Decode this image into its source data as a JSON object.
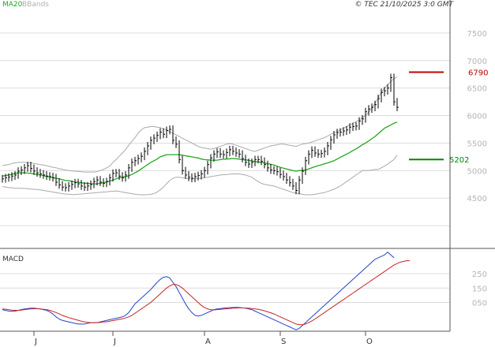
{
  "chart_data": [
    {
      "type": "line",
      "subtype": "ohlc-bars",
      "title": "",
      "legend": [
        "MA20",
        "BBands"
      ],
      "copyright": "© TEC 21/10/2025 3:0 GMT",
      "y_ticks": [
        4500,
        5000,
        5500,
        6000,
        6500,
        7000,
        7500
      ],
      "y_tick_labels": [
        "4500",
        "5000",
        "5500",
        "6000",
        "6500",
        "7000",
        "7500"
      ],
      "ylim": [
        3600,
        7900
      ],
      "grid": true,
      "levels": [
        {
          "value": 6790,
          "label": "6790",
          "color": "#c00000"
        },
        {
          "value": 5202,
          "label": "5202",
          "color": "#008800"
        }
      ],
      "colors": {
        "price": "#000000",
        "ma20": "#22a822",
        "bbands": "#aaaaaa",
        "grid": "#dcdcdc",
        "axis": "#555555"
      },
      "price_series": [
        {
          "name": "Price",
          "values": [
            4850,
            4870,
            4880,
            4900,
            4920,
            4990,
            5010,
            5050,
            5090,
            5040,
            4990,
            4960,
            4940,
            4920,
            4900,
            4890,
            4870,
            4790,
            4740,
            4700,
            4690,
            4720,
            4750,
            4780,
            4760,
            4720,
            4700,
            4720,
            4750,
            4800,
            4830,
            4790,
            4770,
            4800,
            4870,
            4950,
            4960,
            4900,
            4870,
            4920,
            5050,
            5150,
            5180,
            5220,
            5260,
            5350,
            5450,
            5550,
            5590,
            5640,
            5700,
            5660,
            5730,
            5750,
            5550,
            5480,
            5200,
            5000,
            4920,
            4880,
            4860,
            4890,
            4910,
            4940,
            5000,
            5110,
            5230,
            5300,
            5340,
            5300,
            5290,
            5330,
            5380,
            5350,
            5320,
            5300,
            5220,
            5150,
            5120,
            5150,
            5200,
            5200,
            5170,
            5110,
            5050,
            5010,
            5000,
            4980,
            4930,
            4890,
            4830,
            4780,
            4720,
            4640,
            4830,
            4990,
            5180,
            5300,
            5370,
            5320,
            5300,
            5310,
            5350,
            5450,
            5560,
            5650,
            5690,
            5700,
            5720,
            5740,
            5790,
            5800,
            5810,
            5900,
            5940,
            6070,
            6120,
            6150,
            6200,
            6310,
            6420,
            6450,
            6500,
            6690,
            6250,
            6150
          ]
        },
        {
          "name": "MA20",
          "values": [
            4900,
            4910,
            4920,
            4930,
            4950,
            4960,
            4960,
            4960,
            4955,
            4950,
            4940,
            4930,
            4920,
            4910,
            4895,
            4885,
            4870,
            4860,
            4850,
            4835,
            4820,
            4815,
            4805,
            4790,
            4790,
            4780,
            4770,
            4770,
            4760,
            4760,
            4760,
            4770,
            4780,
            4795,
            4810,
            4830,
            4850,
            4870,
            4880,
            4890,
            4905,
            4930,
            4960,
            4990,
            5030,
            5070,
            5110,
            5150,
            5180,
            5210,
            5250,
            5270,
            5290,
            5290,
            5290,
            5290,
            5290,
            5280,
            5270,
            5260,
            5250,
            5240,
            5230,
            5210,
            5200,
            5195,
            5190,
            5190,
            5190,
            5200,
            5205,
            5210,
            5215,
            5220,
            5215,
            5210,
            5200,
            5195,
            5185,
            5175,
            5165,
            5160,
            5150,
            5140,
            5125,
            5115,
            5100,
            5080,
            5060,
            5045,
            5030,
            5015,
            5000,
            4990,
            5000,
            5000,
            5010,
            5030,
            5050,
            5070,
            5090,
            5105,
            5125,
            5140,
            5160,
            5180,
            5210,
            5240,
            5270,
            5300,
            5330,
            5365,
            5395,
            5430,
            5470,
            5500,
            5540,
            5580,
            5620,
            5670,
            5720,
            5770,
            5800,
            5830,
            5860,
            5880
          ]
        },
        {
          "name": "BBands upper",
          "values": [
            5090,
            5100,
            5110,
            5130,
            5140,
            5150,
            5150,
            5150,
            5145,
            5140,
            5130,
            5120,
            5110,
            5100,
            5090,
            5075,
            5060,
            5050,
            5035,
            5025,
            5010,
            5000,
            4995,
            4990,
            4985,
            4980,
            4975,
            4975,
            4975,
            4975,
            4980,
            5000,
            5020,
            5050,
            5080,
            5150,
            5200,
            5260,
            5320,
            5380,
            5460,
            5530,
            5600,
            5680,
            5740,
            5780,
            5790,
            5800,
            5800,
            5790,
            5780,
            5760,
            5740,
            5710,
            5680,
            5650,
            5620,
            5590,
            5560,
            5530,
            5500,
            5470,
            5440,
            5420,
            5410,
            5400,
            5390,
            5400,
            5420,
            5440,
            5460,
            5480,
            5490,
            5480,
            5460,
            5440,
            5420,
            5400,
            5380,
            5360,
            5350,
            5370,
            5390,
            5410,
            5430,
            5450,
            5460,
            5470,
            5480,
            5480,
            5470,
            5460,
            5450,
            5440,
            5460,
            5480,
            5490,
            5500,
            5520,
            5540,
            5560,
            5580,
            5600,
            5630,
            5660,
            5690,
            5710,
            5740,
            5770,
            5800,
            5830,
            5860,
            5890,
            5920,
            5960,
            6000,
            6060,
            6140,
            6220,
            6320,
            6420,
            6500,
            6560,
            6620,
            6670,
            6700
          ]
        },
        {
          "name": "BBands lower",
          "values": [
            4710,
            4700,
            4690,
            4690,
            4680,
            4680,
            4680,
            4675,
            4670,
            4665,
            4660,
            4655,
            4650,
            4640,
            4630,
            4620,
            4610,
            4600,
            4590,
            4580,
            4575,
            4570,
            4565,
            4565,
            4570,
            4575,
            4580,
            4585,
            4590,
            4595,
            4600,
            4605,
            4610,
            4615,
            4620,
            4625,
            4630,
            4620,
            4610,
            4600,
            4590,
            4580,
            4570,
            4565,
            4560,
            4560,
            4565,
            4570,
            4580,
            4610,
            4650,
            4700,
            4760,
            4820,
            4860,
            4880,
            4880,
            4870,
            4860,
            4850,
            4850,
            4850,
            4855,
            4860,
            4870,
            4880,
            4890,
            4900,
            4910,
            4920,
            4925,
            4930,
            4935,
            4940,
            4940,
            4940,
            4930,
            4920,
            4900,
            4880,
            4840,
            4800,
            4770,
            4750,
            4740,
            4730,
            4720,
            4700,
            4680,
            4660,
            4640,
            4620,
            4600,
            4590,
            4580,
            4570,
            4560,
            4560,
            4560,
            4570,
            4580,
            4590,
            4600,
            4620,
            4640,
            4660,
            4690,
            4720,
            4760,
            4800,
            4840,
            4880,
            4920,
            4960,
            5000,
            5000,
            5000,
            5010,
            5020,
            5020,
            5050,
            5080,
            5120,
            5160,
            5200,
            5280
          ]
        }
      ]
    },
    {
      "type": "line",
      "title": "MACD",
      "ylim": [
        -150,
        420
      ],
      "y_ticks": [
        50,
        150,
        250
      ],
      "y_tick_labels": [
        "050",
        "150",
        "250"
      ],
      "x_ticks": [
        {
          "label": "J",
          "index": 10
        },
        {
          "label": "J",
          "index": 35
        },
        {
          "label": "A",
          "index": 64
        },
        {
          "label": "S",
          "index": 88
        },
        {
          "label": "O",
          "index": 115
        }
      ],
      "series": [
        {
          "name": "MACD",
          "color": "#2244cc",
          "values": [
            0,
            -5,
            -10,
            -12,
            -10,
            -5,
            0,
            5,
            8,
            10,
            10,
            8,
            5,
            0,
            -5,
            -15,
            -30,
            -50,
            -65,
            -75,
            -80,
            -85,
            -90,
            -95,
            -100,
            -100,
            -100,
            -95,
            -90,
            -90,
            -90,
            -85,
            -80,
            -75,
            -70,
            -65,
            -60,
            -55,
            -50,
            -40,
            -20,
            10,
            40,
            60,
            80,
            100,
            120,
            140,
            165,
            190,
            210,
            225,
            230,
            220,
            190,
            160,
            120,
            80,
            40,
            5,
            -20,
            -40,
            -45,
            -40,
            -30,
            -20,
            -10,
            0,
            5,
            8,
            10,
            12,
            14,
            15,
            16,
            15,
            12,
            10,
            5,
            0,
            -10,
            -20,
            -30,
            -40,
            -50,
            -60,
            -70,
            -80,
            -90,
            -100,
            -110,
            -120,
            -130,
            -140,
            -130,
            -110,
            -90,
            -70,
            -50,
            -30,
            -10,
            10,
            30,
            50,
            70,
            90,
            110,
            130,
            150,
            170,
            190,
            210,
            230,
            250,
            270,
            290,
            310,
            330,
            350,
            360,
            370,
            380,
            400,
            380,
            360
          ]
        },
        {
          "name": "Signal",
          "color": "#cc2222",
          "values": [
            5,
            3,
            0,
            -3,
            -5,
            -5,
            -3,
            0,
            3,
            5,
            6,
            6,
            5,
            3,
            0,
            -5,
            -12,
            -20,
            -30,
            -40,
            -48,
            -55,
            -62,
            -68,
            -74,
            -80,
            -85,
            -88,
            -90,
            -90,
            -90,
            -88,
            -86,
            -84,
            -80,
            -76,
            -72,
            -68,
            -64,
            -58,
            -50,
            -40,
            -25,
            -10,
            5,
            20,
            35,
            50,
            70,
            90,
            110,
            130,
            150,
            165,
            175,
            175,
            165,
            150,
            130,
            110,
            90,
            70,
            50,
            30,
            15,
            5,
            0,
            -2,
            0,
            2,
            4,
            6,
            8,
            10,
            11,
            12,
            12,
            11,
            10,
            8,
            5,
            2,
            -2,
            -8,
            -15,
            -22,
            -30,
            -40,
            -50,
            -60,
            -70,
            -80,
            -90,
            -100,
            -105,
            -105,
            -100,
            -90,
            -78,
            -65,
            -50,
            -35,
            -20,
            -5,
            10,
            25,
            40,
            55,
            70,
            85,
            100,
            115,
            130,
            145,
            160,
            175,
            190,
            205,
            220,
            235,
            250,
            265,
            280,
            295,
            310,
            320,
            330,
            335,
            340,
            340
          ]
        }
      ]
    }
  ]
}
